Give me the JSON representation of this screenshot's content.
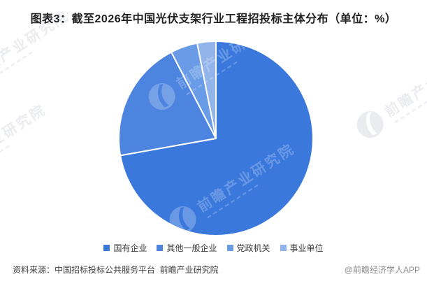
{
  "title": "图表3：截至2026年中国光伏支架行业工程招投标主体分布（单位：%）",
  "chart_data": {
    "type": "pie",
    "title": "截至2026年中国光伏支架行业工程招投标主体分布",
    "unit": "%",
    "categories": [
      "国有企业",
      "其他一般企业",
      "党政机关",
      "事业单位"
    ],
    "values": [
      72.2,
      20.2,
      4.5,
      3.1
    ],
    "colors": [
      "#3A78DC",
      "#4C84DF",
      "#699BE7",
      "#92B4EA"
    ],
    "start_angle_deg": 0,
    "direction": "clockwise",
    "slice_border_color": "#FFFFFF",
    "data_labels": false,
    "legend_position": "bottom"
  },
  "footer": {
    "source": "资料来源：中国招标投标公共服务平台  前瞻产业研究院",
    "credit": "@前瞻经济学人APP"
  },
  "watermark": {
    "text": "前瞻产业研究院"
  }
}
